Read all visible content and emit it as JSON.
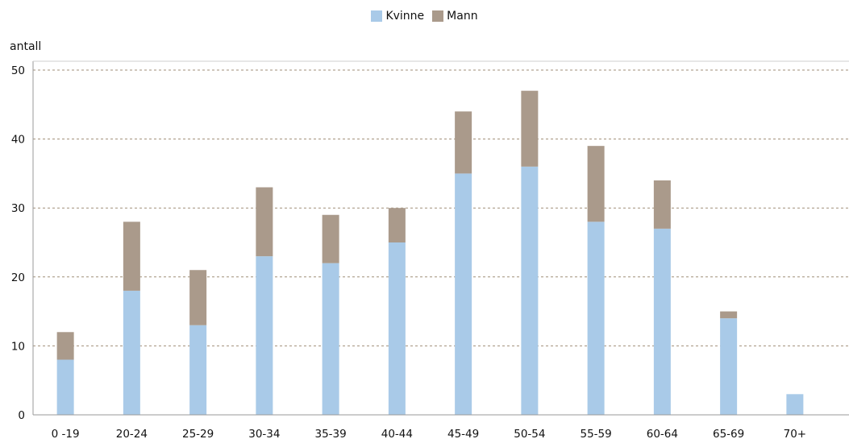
{
  "chart_data": {
    "type": "bar",
    "stacked": true,
    "title": "",
    "xlabel": "",
    "ylabel": "antall",
    "ylim": [
      0,
      50
    ],
    "yticks": [
      0,
      10,
      20,
      30,
      40,
      50
    ],
    "grid": true,
    "legend_position": "top-center",
    "categories": [
      "0 -19",
      "20-24",
      "25-29",
      "30-34",
      "35-39",
      "40-44",
      "45-49",
      "50-54",
      "55-59",
      "60-64",
      "65-69",
      "70+"
    ],
    "series": [
      {
        "name": "Kvinne",
        "color": "#a9cae8",
        "values": [
          8,
          18,
          13,
          23,
          22,
          25,
          35,
          36,
          28,
          27,
          14,
          3
        ]
      },
      {
        "name": "Mann",
        "color": "#aa9a8b",
        "values": [
          4,
          10,
          8,
          10,
          7,
          5,
          9,
          11,
          11,
          7,
          1,
          0
        ]
      }
    ]
  }
}
